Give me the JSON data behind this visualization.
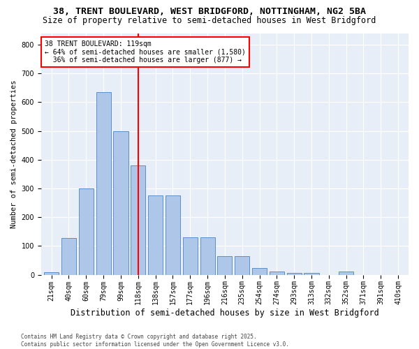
{
  "title1": "38, TRENT BOULEVARD, WEST BRIDGFORD, NOTTINGHAM, NG2 5BA",
  "title2": "Size of property relative to semi-detached houses in West Bridgford",
  "xlabel": "Distribution of semi-detached houses by size in West Bridgford",
  "ylabel": "Number of semi-detached properties",
  "categories": [
    "21sqm",
    "40sqm",
    "60sqm",
    "79sqm",
    "99sqm",
    "118sqm",
    "138sqm",
    "157sqm",
    "177sqm",
    "196sqm",
    "216sqm",
    "235sqm",
    "254sqm",
    "274sqm",
    "293sqm",
    "313sqm",
    "332sqm",
    "352sqm",
    "371sqm",
    "391sqm",
    "410sqm"
  ],
  "values": [
    8,
    128,
    300,
    635,
    500,
    380,
    275,
    275,
    130,
    130,
    65,
    65,
    22,
    10,
    5,
    5,
    0,
    10,
    0,
    0,
    0
  ],
  "bar_color": "#aec6e8",
  "bar_edge_color": "#5b8fc9",
  "vline_x": 5,
  "vline_color": "red",
  "annotation_line1": "38 TRENT BOULEVARD: 119sqm",
  "annotation_line2": "← 64% of semi-detached houses are smaller (1,580)",
  "annotation_line3": "  36% of semi-detached houses are larger (877) →",
  "ylim": [
    0,
    840
  ],
  "yticks": [
    0,
    100,
    200,
    300,
    400,
    500,
    600,
    700,
    800
  ],
  "background_color": "#e8eef7",
  "footer1": "Contains HM Land Registry data © Crown copyright and database right 2025.",
  "footer2": "Contains public sector information licensed under the Open Government Licence v3.0.",
  "title_fontsize": 9.5,
  "subtitle_fontsize": 8.5,
  "tick_fontsize": 7,
  "xlabel_fontsize": 8.5,
  "ylabel_fontsize": 7.5,
  "annot_fontsize": 7
}
